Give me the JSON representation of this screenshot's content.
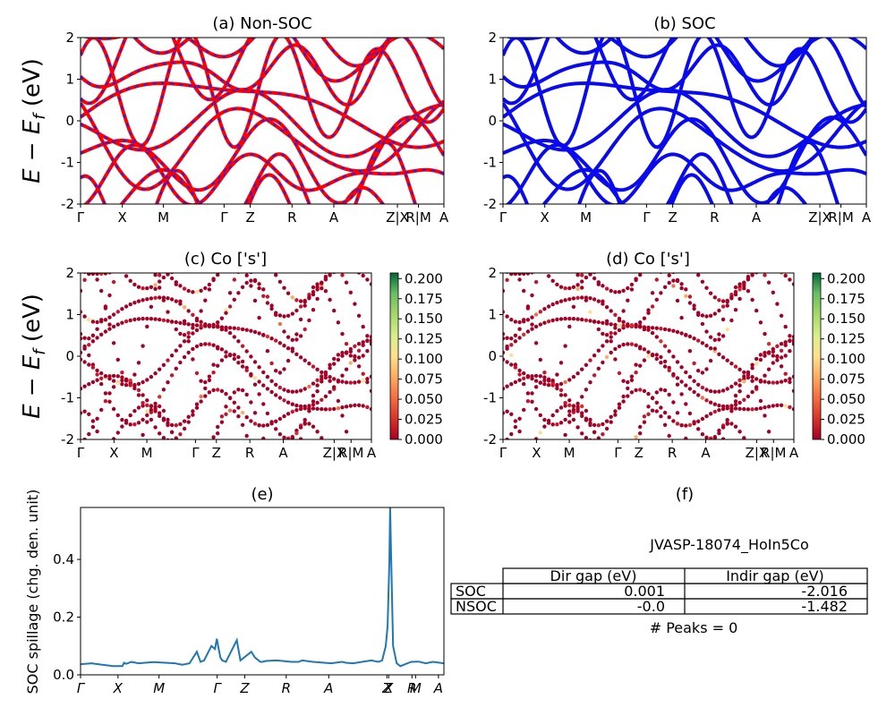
{
  "figure": {
    "ylabel_bands": "E − E",
    "ylabel_bands_sub": "f",
    "ylabel_bands_unit": " (eV)"
  },
  "kpath_labels": [
    "Γ",
    "X",
    "M",
    "Γ",
    "Z",
    "R",
    "A",
    "Z|X",
    "R|M",
    "A"
  ],
  "colors": {
    "nonsoc_main": "#ff0000",
    "nonsoc_dash": "#2222ee",
    "soc": "#0a0aee",
    "spillage": "#1f77b4"
  },
  "chart_data": [
    {
      "id": "a",
      "type": "line",
      "title": "(a) Non-SOC",
      "ylim": [
        -2,
        2
      ],
      "yticks": [
        "-2",
        "-1",
        "0",
        "1",
        "2"
      ],
      "xticks": [
        "Γ",
        "X",
        "M",
        "Γ",
        "Z",
        "R",
        "A",
        "Z|X",
        "R|M",
        "A"
      ],
      "style": "red line with blue dashes"
    },
    {
      "id": "b",
      "type": "line",
      "title": "(b) SOC",
      "ylim": [
        -2,
        2
      ],
      "yticks": [
        "-2",
        "-1",
        "0",
        "1",
        "2"
      ],
      "xticks": [
        "Γ",
        "X",
        "M",
        "Γ",
        "Z",
        "R",
        "A",
        "Z|X",
        "R|M",
        "A"
      ],
      "style": "blue line"
    },
    {
      "id": "c",
      "type": "scatter",
      "title": "(c)  Co ['s']",
      "ylim": [
        -2,
        2
      ],
      "yticks": [
        "-2",
        "-1",
        "0",
        "1",
        "2"
      ],
      "xticks": [
        "Γ",
        "X",
        "M",
        "Γ",
        "Z",
        "R",
        "A",
        "Z|X",
        "R|M",
        "A"
      ],
      "colorbar": {
        "range": [
          0.0,
          0.2
        ],
        "ticks": [
          "0.000",
          "0.025",
          "0.050",
          "0.075",
          "0.100",
          "0.125",
          "0.150",
          "0.175",
          "0.200"
        ],
        "colormap": "RdYlGn"
      }
    },
    {
      "id": "d",
      "type": "scatter",
      "title": "(d) Co ['s']",
      "ylim": [
        -2,
        2
      ],
      "yticks": [
        "-2",
        "-1",
        "0",
        "1",
        "2"
      ],
      "xticks": [
        "Γ",
        "X",
        "M",
        "Γ",
        "Z",
        "R",
        "A",
        "Z|X",
        "R|M",
        "A"
      ],
      "colorbar": {
        "range": [
          0.0,
          0.2
        ],
        "ticks": [
          "0.000",
          "0.025",
          "0.050",
          "0.075",
          "0.100",
          "0.125",
          "0.150",
          "0.175",
          "0.200"
        ],
        "colormap": "RdYlGn"
      }
    },
    {
      "id": "e",
      "type": "line",
      "title": "(e)",
      "ylabel": "SOC spillage (chg. den. unit)",
      "ylim": [
        0,
        0.58
      ],
      "yticks": [
        "0.0",
        "0.2",
        "0.4"
      ],
      "xticks": [
        "Γ",
        "X",
        "M",
        "Γ",
        "Z",
        "R",
        "A",
        "Z",
        "X",
        "R",
        "M",
        "A"
      ],
      "x": [
        0,
        0.03,
        0.06,
        0.09,
        0.115,
        0.12,
        0.125,
        0.13,
        0.14,
        0.16,
        0.2,
        0.26,
        0.28,
        0.3,
        0.32,
        0.33,
        0.34,
        0.36,
        0.37,
        0.375,
        0.38,
        0.385,
        0.39,
        0.4,
        0.43,
        0.44,
        0.47,
        0.48,
        0.485,
        0.49,
        0.495,
        0.5,
        0.51,
        0.54,
        0.58,
        0.6,
        0.61,
        0.64,
        0.69,
        0.72,
        0.73,
        0.75,
        0.8,
        0.82,
        0.83,
        0.84,
        0.845,
        0.85,
        0.852,
        0.855,
        0.86,
        0.865,
        0.87,
        0.88,
        0.9,
        0.91,
        0.93,
        0.95,
        0.97,
        1.0
      ],
      "values": [
        0.037,
        0.04,
        0.035,
        0.03,
        0.03,
        0.042,
        0.038,
        0.04,
        0.045,
        0.04,
        0.044,
        0.04,
        0.035,
        0.04,
        0.08,
        0.045,
        0.05,
        0.1,
        0.09,
        0.125,
        0.09,
        0.06,
        0.05,
        0.045,
        0.12,
        0.05,
        0.08,
        0.06,
        0.055,
        0.05,
        0.045,
        0.045,
        0.048,
        0.05,
        0.045,
        0.045,
        0.05,
        0.045,
        0.04,
        0.045,
        0.042,
        0.04,
        0.05,
        0.045,
        0.05,
        0.1,
        0.17,
        0.4,
        0.58,
        0.4,
        0.1,
        0.07,
        0.04,
        0.03,
        0.04,
        0.045,
        0.046,
        0.04,
        0.045,
        0.04
      ]
    },
    {
      "id": "f",
      "type": "table",
      "title": "(f)",
      "caption": "JVASP-18074_HoIn5Co",
      "columns": [
        "",
        "Dir gap (eV)",
        "Indir gap (eV)"
      ],
      "rows": [
        [
          "SOC",
          "0.001",
          "-2.016"
        ],
        [
          "NSOC",
          "-0.0",
          "-1.482"
        ]
      ],
      "footer": "# Peaks = 0"
    }
  ]
}
